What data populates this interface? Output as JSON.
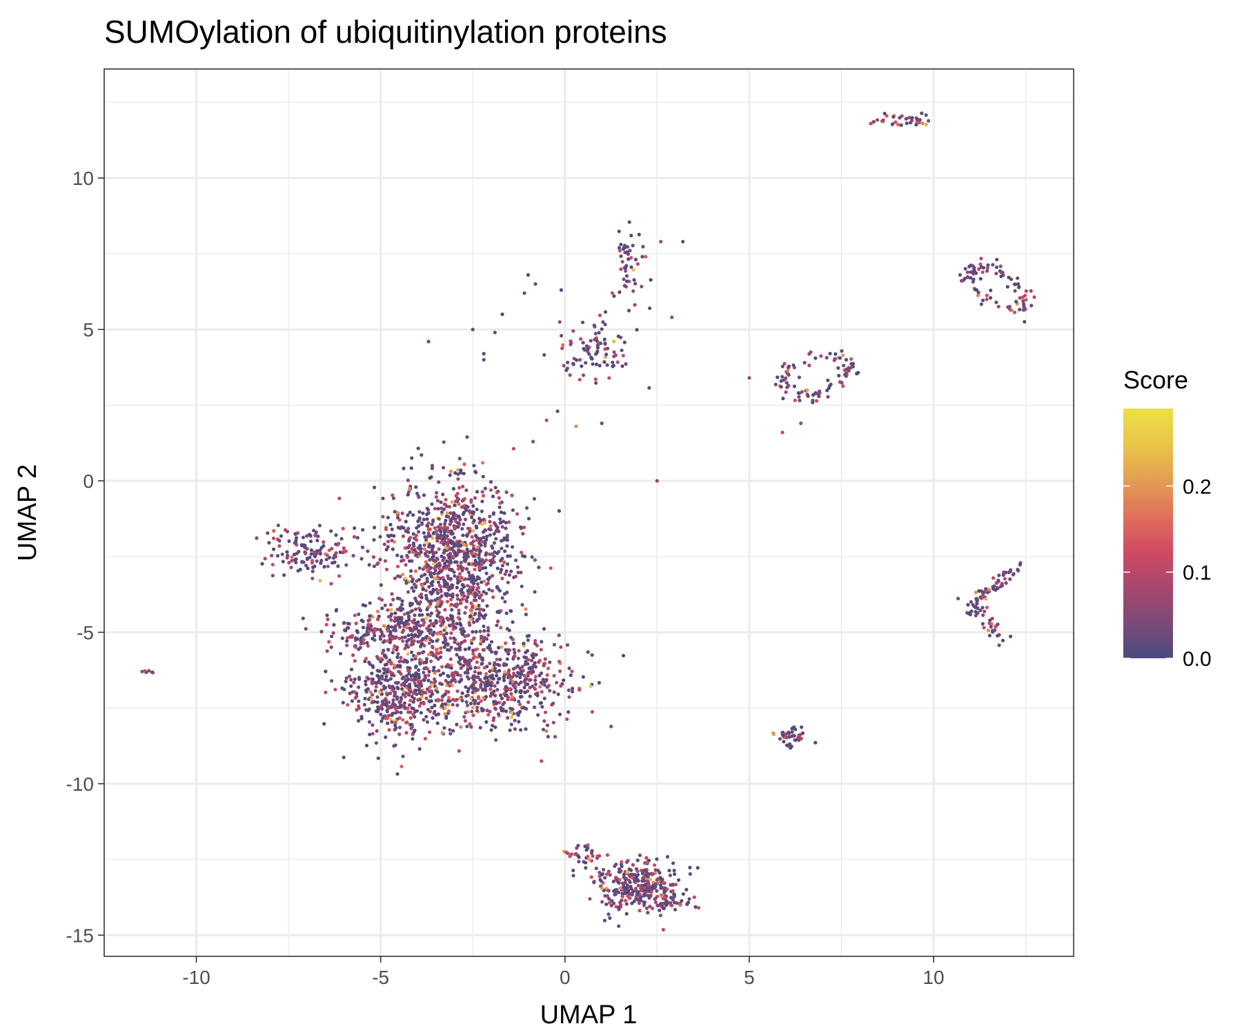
{
  "chart_data": {
    "type": "scatter",
    "title": "SUMOylation of ubiquitinylation proteins",
    "xlabel": "UMAP 1",
    "ylabel": "UMAP 2",
    "xlim": [
      -12.5,
      13.8
    ],
    "ylim": [
      -15.7,
      13.6
    ],
    "x_ticks": [
      -10,
      -5,
      0,
      5,
      10
    ],
    "y_ticks": [
      -15,
      -10,
      -5,
      0,
      5,
      10
    ],
    "x_tick_labels": [
      "-10",
      "-5",
      "0",
      "5",
      "10"
    ],
    "y_tick_labels": [
      "-15",
      "-10",
      "-5",
      "0",
      "5",
      "10"
    ],
    "grid": true,
    "legend": {
      "title": "Score",
      "placement": "right",
      "type": "colorbar",
      "range": [
        0,
        0.29
      ],
      "ticks": [
        0.0,
        0.1,
        0.2
      ],
      "tick_labels": [
        "0.0",
        "0.1",
        "0.2"
      ],
      "colors": [
        "#4a4a7e",
        "#7d4a78",
        "#a8476e",
        "#d04a62",
        "#e0705a",
        "#e39e52",
        "#e9c648",
        "#ebe046"
      ]
    },
    "clusters": [
      {
        "name": "main-upper",
        "cx": -3.0,
        "cy": -2.3,
        "sx": 0.9,
        "sy": 1.2,
        "n": 900,
        "seed": 11
      },
      {
        "name": "main-left-arm",
        "cx": -6.9,
        "cy": -2.3,
        "sx": 0.6,
        "sy": 0.4,
        "n": 140,
        "seed": 12
      },
      {
        "name": "main-mid-left",
        "cx": -4.8,
        "cy": -5.0,
        "sx": 0.9,
        "sy": 0.4,
        "n": 200,
        "seed": 13
      },
      {
        "name": "main-lower-left",
        "cx": -4.6,
        "cy": -7.0,
        "sx": 0.7,
        "sy": 0.8,
        "n": 420,
        "seed": 14
      },
      {
        "name": "main-lower-right",
        "cx": -2.0,
        "cy": -6.6,
        "sx": 1.1,
        "sy": 0.8,
        "n": 620,
        "seed": 15
      },
      {
        "name": "main-bridge",
        "cx": -3.3,
        "cy": -4.5,
        "sx": 0.8,
        "sy": 0.7,
        "n": 200,
        "seed": 16
      },
      {
        "name": "bottom",
        "cx": 2.0,
        "cy": -13.4,
        "sx": 0.6,
        "sy": 0.45,
        "n": 320,
        "seed": 17
      },
      {
        "name": "bottom-tail",
        "cx": 0.5,
        "cy": -12.4,
        "sx": 0.3,
        "sy": 0.2,
        "n": 30,
        "seed": 18
      },
      {
        "name": "bottom-right-tail",
        "cx": 3.0,
        "cy": -14.0,
        "sx": 0.3,
        "sy": 0.12,
        "n": 25,
        "seed": 19
      },
      {
        "name": "small-right-bottom",
        "cx": 6.1,
        "cy": -8.4,
        "sx": 0.3,
        "sy": 0.15,
        "n": 40,
        "seed": 20
      },
      {
        "name": "mid-top-blob",
        "cx": 0.8,
        "cy": 4.3,
        "sx": 0.6,
        "sy": 0.5,
        "n": 90,
        "seed": 21
      },
      {
        "name": "mid-top-stick",
        "cx": 1.7,
        "cy": 7.2,
        "sx": 0.2,
        "sy": 0.6,
        "n": 50,
        "seed": 22
      },
      {
        "name": "far-left",
        "cx": -11.4,
        "cy": -6.3,
        "sx": 0.1,
        "sy": 0.05,
        "n": 6,
        "seed": 23
      },
      {
        "name": "top-right",
        "cx": 9.1,
        "cy": 11.9,
        "sx": 0.4,
        "sy": 0.18,
        "n": 35,
        "seed": 24
      }
    ],
    "rings": [
      {
        "name": "ring-mid-right",
        "cx": 6.8,
        "cy": 3.5,
        "rx": 1.0,
        "ry": 0.6,
        "tilt": 0.45,
        "n": 90,
        "seed": 31
      },
      {
        "name": "ring-far-right",
        "cx": 11.7,
        "cy": 6.4,
        "rx": 0.9,
        "ry": 0.45,
        "tilt": -0.75,
        "n": 90,
        "seed": 32
      }
    ],
    "lines": [
      {
        "name": "right-arm",
        "x1": 12.3,
        "y1": -2.8,
        "x2": 10.9,
        "y2": -4.3,
        "n": 60,
        "spread": 0.12,
        "seed": 41
      },
      {
        "name": "right-arm-foot",
        "x1": 11.0,
        "y1": -4.0,
        "x2": 12.0,
        "y2": -5.4,
        "n": 35,
        "spread": 0.12,
        "seed": 42
      }
    ],
    "points": [
      {
        "x": -3.7,
        "y": 4.6
      },
      {
        "x": -2.5,
        "y": 5.0
      },
      {
        "x": -1.9,
        "y": 4.9
      },
      {
        "x": -2.2,
        "y": 4.2
      },
      {
        "x": -2.2,
        "y": 4.0
      },
      {
        "x": -1.7,
        "y": 5.5
      },
      {
        "x": -1.1,
        "y": 6.2
      },
      {
        "x": -1.0,
        "y": 6.8
      },
      {
        "x": -0.8,
        "y": 6.5
      },
      {
        "x": -0.1,
        "y": 6.3
      },
      {
        "x": -0.5,
        "y": 2.0
      },
      {
        "x": -0.2,
        "y": 2.3
      },
      {
        "x": 0.3,
        "y": 1.8
      },
      {
        "x": 1.0,
        "y": 1.9
      },
      {
        "x": 2.3,
        "y": 5.7
      },
      {
        "x": 2.9,
        "y": 5.4
      },
      {
        "x": 3.2,
        "y": 7.9
      },
      {
        "x": 2.6,
        "y": 7.9
      },
      {
        "x": 2.5,
        "y": 0.0
      },
      {
        "x": 5.0,
        "y": 3.4
      },
      {
        "x": 5.9,
        "y": 1.6
      },
      {
        "x": 6.4,
        "y": 1.9
      },
      {
        "x": 8.3,
        "y": 11.8
      }
    ]
  }
}
